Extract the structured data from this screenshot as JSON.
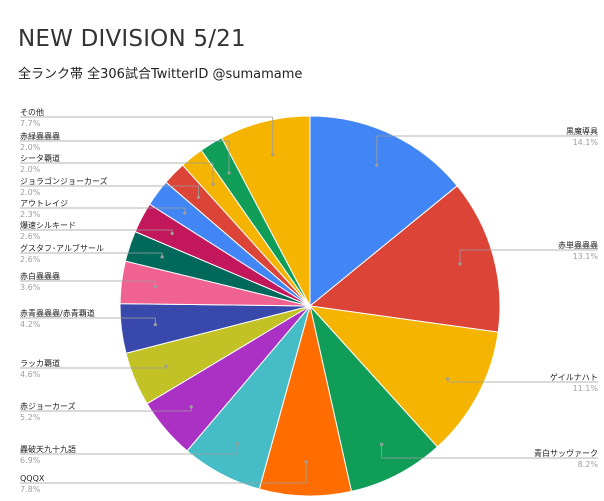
{
  "chart_data": {
    "type": "pie",
    "title": "NEW DIVISION 5/21",
    "subtitle": "全ランク帯 全306試合TwitterID @sumamame",
    "slices": [
      {
        "label": "黒魔導具",
        "value": 14.1,
        "value_text": "14.1%",
        "color": "#4285F4"
      },
      {
        "label": "赤単蟲蟲蟲",
        "value": 13.1,
        "value_text": "13.1%",
        "color": "#DB4437"
      },
      {
        "label": "ゲイルナハト",
        "value": 11.1,
        "value_text": "11.1%",
        "color": "#F4B400"
      },
      {
        "label": "青白サッヴァーク",
        "value": 8.2,
        "value_text": "8.2%",
        "color": "#0F9D58"
      },
      {
        "label": "QQQX",
        "value": 7.8,
        "value_text": "7.8%",
        "color": "#FF6D00"
      },
      {
        "label": "轟破天九十九語",
        "value": 6.9,
        "value_text": "6.9%",
        "color": "#46BDC6"
      },
      {
        "label": "赤ジョーカーズ",
        "value": 5.2,
        "value_text": "5.2%",
        "color": "#AB30C4"
      },
      {
        "label": "ラッカ覇道",
        "value": 4.6,
        "value_text": "4.6%",
        "color": "#C2C125"
      },
      {
        "label": "赤青蟲蟲蟲/赤青覇道",
        "value": 4.2,
        "value_text": "4.2%",
        "color": "#3949AB"
      },
      {
        "label": "赤白蟲蟲蟲",
        "value": 3.6,
        "value_text": "3.6%",
        "color": "#F06292"
      },
      {
        "label": "グスタフ･アルブサール",
        "value": 2.6,
        "value_text": "2.6%",
        "color": "#00695C"
      },
      {
        "label": "爆速シルキード",
        "value": 2.6,
        "value_text": "2.6%",
        "color": "#C2185B"
      },
      {
        "label": "アウトレイジ",
        "value": 2.3,
        "value_text": "2.3%",
        "color": "#4285F4"
      },
      {
        "label": "ジョラゴンジョーカーズ",
        "value": 2.0,
        "value_text": "2.0%",
        "color": "#DB4437"
      },
      {
        "label": "シータ覇道",
        "value": 2.0,
        "value_text": "2.0%",
        "color": "#F4B400"
      },
      {
        "label": "赤緑蟲蟲蟲",
        "value": 2.0,
        "value_text": "2.0%",
        "color": "#0F9D58"
      },
      {
        "label": "その他",
        "value": 7.7,
        "value_text": "7.7%",
        "color": "#F4B400"
      }
    ],
    "legend": "labels beside slices"
  }
}
